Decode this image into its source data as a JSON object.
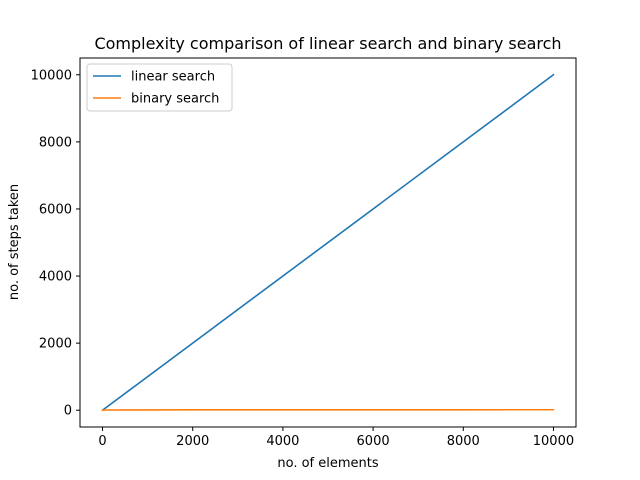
{
  "chart_data": {
    "type": "line",
    "title": "Complexity comparison of linear search and binary search",
    "xlabel": "no. of elements",
    "ylabel": "no. of steps taken",
    "xlim": [
      -500,
      10500
    ],
    "ylim": [
      -500,
      10500
    ],
    "xticks": [
      0,
      2000,
      4000,
      6000,
      8000,
      10000
    ],
    "yticks": [
      0,
      2000,
      4000,
      6000,
      8000,
      10000
    ],
    "grid": false,
    "legend_position": "top-left",
    "series": [
      {
        "name": "linear search",
        "color": "#1f77b4",
        "x": [
          1,
          10000
        ],
        "y": [
          1,
          10000
        ]
      },
      {
        "name": "binary search",
        "color": "#ff7f0e",
        "x": [
          1,
          10,
          100,
          500,
          1000,
          2000,
          3000,
          4000,
          5000,
          6000,
          7000,
          8000,
          9000,
          10000
        ],
        "y": [
          1,
          4,
          7,
          9,
          10,
          11,
          12,
          12,
          13,
          13,
          13,
          13,
          14,
          14
        ]
      }
    ]
  }
}
